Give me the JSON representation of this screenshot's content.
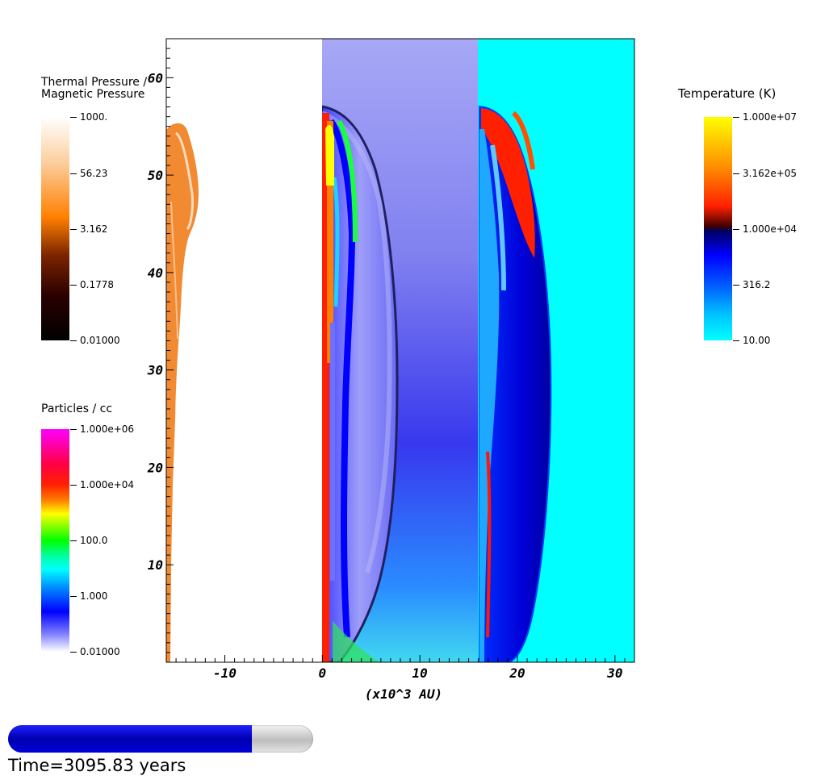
{
  "chart_data": {
    "type": "heatmap",
    "xlabel": "(x10^3 AU)",
    "ylabel": "",
    "xlim": [
      -16,
      32
    ],
    "ylim": [
      0,
      64
    ],
    "x_ticks": [
      -10,
      0,
      10,
      20,
      30
    ],
    "y_ticks": [
      10,
      20,
      30,
      40,
      50,
      60
    ],
    "panels": [
      {
        "field": "Thermal Pressure / Magnetic Pressure",
        "x_range": [
          -16,
          0
        ]
      },
      {
        "field": "Particles / cc",
        "x_range": [
          0,
          16
        ]
      },
      {
        "field": "Temperature (K)",
        "x_range": [
          16,
          32
        ]
      }
    ],
    "colorbars": [
      {
        "title": [
          "Thermal Pressure /",
          "Magnetic Pressure"
        ],
        "ticks": [
          "1000.",
          "56.23",
          "3.162",
          "0.1778",
          "0.01000"
        ],
        "range": [
          0.01,
          1000
        ],
        "scale": "log",
        "colors": [
          "#ffffff",
          "#ff8000",
          "#000000"
        ]
      },
      {
        "title": [
          "Particles / cc"
        ],
        "ticks": [
          "1.000e+06",
          "1.000e+04",
          "100.0",
          "1.000",
          "0.01000"
        ],
        "range": [
          0.01,
          1000000
        ],
        "scale": "log",
        "colors": [
          "#ff00ff",
          "#ff0000",
          "#ffff00",
          "#00ff00",
          "#00ffff",
          "#0000ff",
          "#ffffff"
        ]
      },
      {
        "title": [
          "Temperature (K)"
        ],
        "ticks": [
          "1.000e+07",
          "3.162e+05",
          "1.000e+04",
          "316.2",
          "10.00"
        ],
        "range": [
          10,
          10000000
        ],
        "scale": "log",
        "colors": [
          "#ffff00",
          "#ff0000",
          "#000080",
          "#0000ff",
          "#00ffff"
        ]
      }
    ]
  },
  "progress": {
    "fraction": 0.8,
    "fill_color": "#0000cc",
    "track_color": "#d0d0d0"
  },
  "time_label": "Time=3095.83 years"
}
